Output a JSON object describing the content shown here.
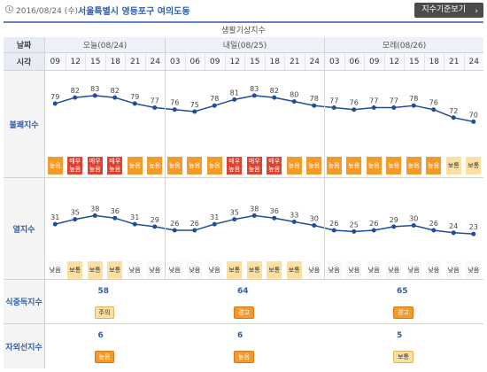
{
  "header": {
    "date": "2016/08/24 (수)",
    "location": "서울특별시 영등포구 여의도동",
    "button_label": "지수기준보기"
  },
  "title": "생활기상지수",
  "labels": {
    "date_row": "날짜",
    "time_row": "시각",
    "discomfort": "불쾌지수",
    "heat": "열지수",
    "food": "식중독지수",
    "uv": "자외선지수"
  },
  "days": [
    "오늘(08/24)",
    "내일(08/25)",
    "모레(08/26)"
  ],
  "times": [
    "09",
    "12",
    "15",
    "18",
    "21",
    "24",
    "03",
    "06",
    "09",
    "12",
    "15",
    "18",
    "21",
    "24",
    "03",
    "06",
    "09",
    "12",
    "15",
    "18",
    "21",
    "24"
  ],
  "discomfort": {
    "values": [
      79,
      82,
      83,
      82,
      79,
      77,
      76,
      75,
      78,
      81,
      83,
      82,
      80,
      78,
      77,
      76,
      77,
      77,
      78,
      76,
      72,
      70
    ],
    "levels": [
      "높음",
      "매우 높음",
      "매우 높음",
      "매우 높음",
      "높음",
      "높음",
      "높음",
      "높음",
      "높음",
      "매우 높음",
      "매우 높음",
      "매우 높음",
      "높음",
      "높음",
      "높음",
      "높음",
      "높음",
      "높음",
      "높음",
      "높음",
      "보통",
      "보통"
    ],
    "level_types": [
      "high",
      "vhigh",
      "vhigh",
      "vhigh",
      "high",
      "high",
      "high",
      "high",
      "high",
      "vhigh",
      "vhigh",
      "vhigh",
      "high",
      "high",
      "high",
      "high",
      "high",
      "high",
      "high",
      "high",
      "mid",
      "mid"
    ]
  },
  "heat": {
    "values": [
      31,
      35,
      38,
      36,
      31,
      29,
      26,
      26,
      31,
      35,
      38,
      36,
      33,
      30,
      26,
      25,
      26,
      29,
      30,
      26,
      24,
      23
    ],
    "levels": [
      "낮음",
      "보통",
      "보통",
      "보통",
      "낮음",
      "낮음",
      "낮음",
      "낮음",
      "낮음",
      "보통",
      "보통",
      "보통",
      "보통",
      "낮음",
      "낮음",
      "낮음",
      "낮음",
      "낮음",
      "낮음",
      "낮음",
      "낮음",
      "낮음"
    ],
    "level_types": [
      "low",
      "mid",
      "mid",
      "mid",
      "low",
      "low",
      "low",
      "low",
      "low",
      "mid",
      "mid",
      "mid",
      "mid",
      "low",
      "low",
      "low",
      "low",
      "low",
      "low",
      "low",
      "low",
      "low"
    ]
  },
  "food": {
    "values": [
      "58",
      "64",
      "65"
    ],
    "levels": [
      "주의",
      "경고",
      "경고"
    ],
    "level_types": [
      "warn",
      "alert",
      "alert"
    ]
  },
  "uv": {
    "values": [
      "6",
      "6",
      "5"
    ],
    "levels": [
      "높음",
      "높음",
      "보통"
    ],
    "level_types": [
      "alert",
      "alert",
      "mid"
    ]
  },
  "colors": {
    "line": "#1e4d9b",
    "accent": "#2f5fa8",
    "level_high": "#f29b2b",
    "level_very_high": "#e0422f",
    "level_mid": "#fbe0a2"
  }
}
